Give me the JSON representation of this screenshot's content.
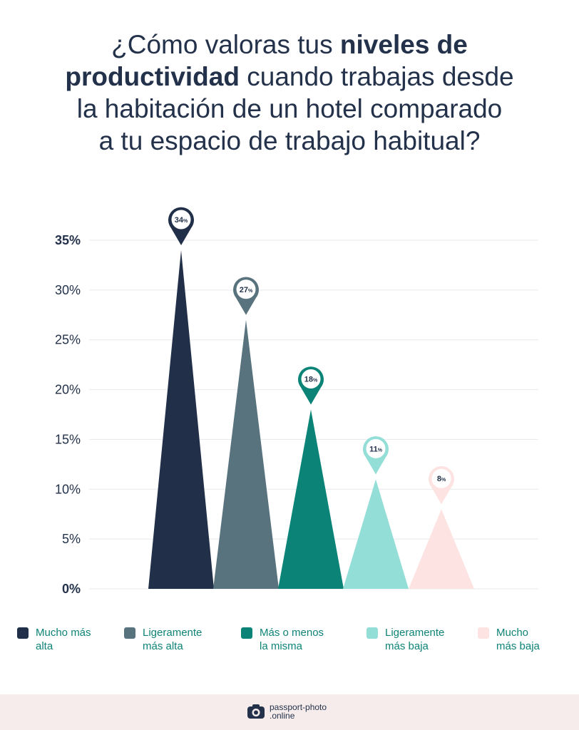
{
  "title": {
    "pre": "¿Cómo valoras tus ",
    "bold_1": "niveles de",
    "bold_2": "productividad",
    "post_1": " cuando trabajas desde",
    "line_3": "la habitación de un hotel comparado",
    "line_4": "a tu espacio de trabajo habitual?"
  },
  "chart_data": {
    "type": "bar",
    "categories": [
      "Mucho más alta",
      "Ligeramente más alta",
      "Más o menos la misma",
      "Ligeramente más baja",
      "Mucho más baja"
    ],
    "values": [
      34,
      27,
      18,
      11,
      8
    ],
    "value_labels": [
      "34%",
      "27%",
      "18%",
      "11%",
      "8%"
    ],
    "colors": [
      "#213048",
      "#58737d",
      "#0b8377",
      "#93ded7",
      "#fde3e2"
    ],
    "ylim": [
      0,
      35
    ],
    "yticks": [
      "0%",
      "5%",
      "10%",
      "15%",
      "20%",
      "25%",
      "30%",
      "35%"
    ],
    "grid": true,
    "legend_position": "bottom"
  },
  "legend": [
    {
      "line1": "Mucho más",
      "line2": "alta"
    },
    {
      "line1": "Ligeramente",
      "line2": "más alta"
    },
    {
      "line1": "Más o menos",
      "line2": "la misma"
    },
    {
      "line1": "Ligeramente",
      "line2": "más baja"
    },
    {
      "line1": "Mucho",
      "line2": "más baja"
    }
  ],
  "footer": {
    "brand_line1": "passport-photo",
    "brand_line2": ".online",
    "brand_icon": "camera-icon"
  }
}
